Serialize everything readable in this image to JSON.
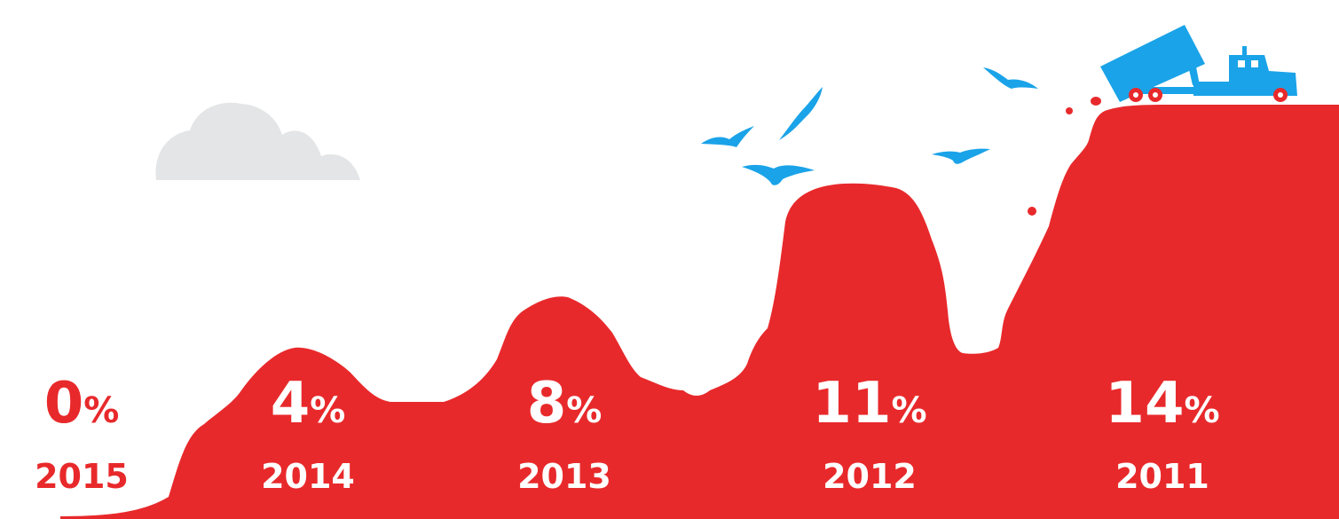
{
  "chart_data": {
    "type": "area",
    "categories": [
      "2015",
      "2014",
      "2013",
      "2012",
      "2011"
    ],
    "values": [
      0,
      4,
      8,
      11,
      14
    ],
    "value_labels": [
      "0",
      "4",
      "8",
      "11",
      "14"
    ],
    "unit": "%",
    "title": "",
    "xlabel": "",
    "ylabel": "",
    "grid": false,
    "legend": "none"
  },
  "colors": {
    "area": "#e8292b",
    "label_on_white": "#e8292b",
    "label_on_area": "#ffffff",
    "birds_and_truck": "#1aa3e8",
    "cloud": "#e4e5e6"
  },
  "icons": [
    "cloud-icon",
    "bird-icon",
    "dump-truck-icon"
  ]
}
